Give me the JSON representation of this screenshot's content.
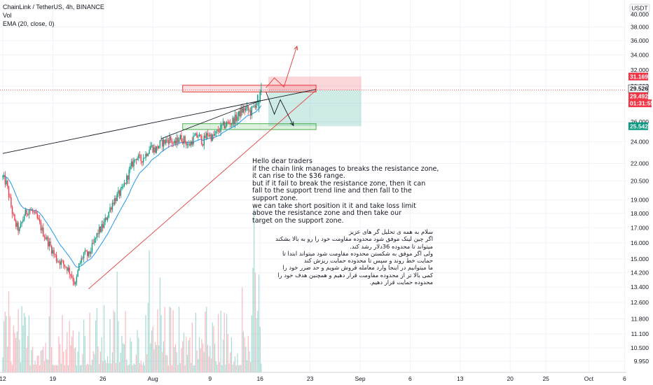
{
  "header": {
    "symbol_line": "ChainLink / TetherUS, 4h, BINANCE",
    "volume_label": "Vol",
    "ema_label": "EMA (20, close, 0)",
    "currency": "USDT"
  },
  "annotations": {
    "english": [
      "Hello dear traders",
      "if the chain link manages to breaks the resistance zone,",
      "it can rise to the $36 range.",
      "but if it fail to break the resistance zone, then it can",
      "fall to the support trend line and then fall to the",
      "support zone.",
      "we can take short position it it and take loss limit",
      "above the resistance zone and then take our",
      "target on the support zone."
    ],
    "persian": [
      "سلام به همه ی تحلیل گر های عزیز",
      "اگر چین لینک موفق شود محدوده مقاومت خود را رو به بالا بشکند",
      "میتواند تا محدوده 36دلار رشد کند.",
      "ولی اگر موفق به شکستن محدوده مقاومت شود میتواند ابتدا تا",
      "حمایت خط روند و سپس تا محدوده حمایت ریزش کند",
      "ما میتوانیم در اینجا وارد معامله فروش شویم و حد ضرر خود را",
      "کمی بالا تر از محدوده مقاومت قرار دهیم و همچنین هدف خود را",
      "محدوده حمایت قرار دهیم."
    ]
  },
  "chart_data": {
    "type": "candlestick",
    "symbol": "LINK/USDT",
    "interval": "4h",
    "exchange": "BINANCE",
    "y_scale": "log",
    "ylim": [
      9.5,
      40.5
    ],
    "y_ticks": [
      "9.950",
      "10.500",
      "11.100",
      "11.800",
      "12.600",
      "13.400",
      "14.200",
      "15.000",
      "16.000",
      "17.000",
      "18.000",
      "19.000",
      "20.500",
      "22.000",
      "24.000",
      "26.000",
      "28.000",
      "30.000",
      "32.000",
      "34.000",
      "36.000",
      "38.000"
    ],
    "y_top_partial": "40.000",
    "x_ticks": [
      {
        "label": "12",
        "i": 0
      },
      {
        "label": "19",
        "i": 42
      },
      {
        "label": "26",
        "i": 84
      },
      {
        "label": "Aug",
        "i": 126
      },
      {
        "label": "9",
        "i": 174
      },
      {
        "label": "16",
        "i": 216
      },
      {
        "label": "23",
        "i": 258
      },
      {
        "label": "Sep",
        "i": 300
      },
      {
        "label": "6",
        "i": 342
      },
      {
        "label": "13",
        "i": 384
      },
      {
        "label": "20",
        "i": 426
      },
      {
        "label": "25",
        "i": 456
      },
      {
        "label": "Oct",
        "i": 492
      },
      {
        "label": "6",
        "i": 522
      },
      {
        "label": "11",
        "i": 552
      }
    ],
    "n_bars": 218,
    "price_path": [
      [
        0,
        20.8
      ],
      [
        3,
        20.3
      ],
      [
        7,
        18.5
      ],
      [
        10,
        17.3
      ],
      [
        14,
        16.8
      ],
      [
        18,
        17.9
      ],
      [
        22,
        18.3
      ],
      [
        25,
        18.1
      ],
      [
        29,
        17.6
      ],
      [
        33,
        16.8
      ],
      [
        37,
        16.2
      ],
      [
        41,
        15.6
      ],
      [
        45,
        15.0
      ],
      [
        49,
        14.8
      ],
      [
        54,
        14.5
      ],
      [
        58,
        14.0
      ],
      [
        61,
        13.5
      ],
      [
        64,
        14.6
      ],
      [
        68,
        15.3
      ],
      [
        72,
        15.2
      ],
      [
        76,
        15.9
      ],
      [
        80,
        16.7
      ],
      [
        84,
        17.1
      ],
      [
        88,
        17.9
      ],
      [
        92,
        18.8
      ],
      [
        96,
        19.3
      ],
      [
        100,
        19.7
      ],
      [
        104,
        20.7
      ],
      [
        108,
        21.8
      ],
      [
        112,
        22.6
      ],
      [
        116,
        22.3
      ],
      [
        120,
        22.8
      ],
      [
        124,
        23.6
      ],
      [
        128,
        23.2
      ],
      [
        132,
        23.8
      ],
      [
        136,
        24.0
      ],
      [
        140,
        24.3
      ],
      [
        144,
        23.7
      ],
      [
        148,
        24.4
      ],
      [
        152,
        24.2
      ],
      [
        156,
        23.6
      ],
      [
        160,
        24.3
      ],
      [
        164,
        24.6
      ],
      [
        168,
        24.0
      ],
      [
        172,
        24.8
      ],
      [
        176,
        24.4
      ],
      [
        180,
        24.9
      ],
      [
        184,
        25.5
      ],
      [
        188,
        25.8
      ],
      [
        192,
        26.0
      ],
      [
        196,
        26.4
      ],
      [
        200,
        27.1
      ],
      [
        204,
        27.4
      ],
      [
        208,
        27.0
      ],
      [
        212,
        27.9
      ],
      [
        215,
        28.9
      ],
      [
        217,
        29.5
      ]
    ],
    "ohlc_tail": [
      {
        "o": 27.4,
        "h": 28.4,
        "l": 27.0,
        "c": 28.2
      },
      {
        "o": 28.2,
        "h": 29.6,
        "l": 28.0,
        "c": 29.3
      },
      {
        "o": 29.3,
        "h": 30.4,
        "l": 28.9,
        "c": 29.5
      }
    ],
    "ema_period": 20,
    "price_labels": [
      {
        "value": "31.169",
        "kind": "resistance_top",
        "color": "#f23645"
      },
      {
        "value": "29.526",
        "kind": "last_price",
        "color": "#ffffff"
      },
      {
        "value": "29.492",
        "kind": "entry",
        "color": "#f23645"
      },
      {
        "value": "01:31:55",
        "kind": "countdown",
        "color": "#f23645"
      },
      {
        "value": "25.542",
        "kind": "target",
        "color": "#089981"
      }
    ],
    "zones": {
      "resistance": {
        "from_i": 151,
        "to_i": 263,
        "low": 29.3,
        "high": 30.1
      },
      "support": {
        "from_i": 151,
        "to_i": 263,
        "low": 25.2,
        "high": 25.8
      },
      "stop_area": {
        "from_i": 223,
        "to_i": 301,
        "low": 29.492,
        "high": 31.169
      },
      "target_area": {
        "from_i": 223,
        "to_i": 301,
        "low": 25.542,
        "high": 29.492
      }
    },
    "trendlines": [
      {
        "name": "upper_wedge",
        "i1": 0,
        "p1": 22.9,
        "i2": 263,
        "p2": 29.6,
        "color": "#131722"
      },
      {
        "name": "lower_wedge",
        "i1": 133,
        "p1": 24.3,
        "i2": 216,
        "p2": 28.3,
        "color": "#131722"
      },
      {
        "name": "rising_support",
        "i1": 72,
        "p1": 13.3,
        "i2": 263,
        "p2": 29.5,
        "color": "#e53935"
      }
    ],
    "scenario_arrows": [
      {
        "name": "bullish",
        "points": [
          [
            221,
            29.8
          ],
          [
            228,
            31.0
          ],
          [
            236,
            29.9
          ],
          [
            247,
            35.2
          ]
        ],
        "color": "#e53935"
      },
      {
        "name": "bearish",
        "points": [
          [
            221,
            29.3
          ],
          [
            228,
            26.8
          ],
          [
            233,
            28.4
          ],
          [
            244,
            25.6
          ]
        ],
        "color": "#131722"
      }
    ],
    "current_price_line": 29.526,
    "grid": true
  }
}
